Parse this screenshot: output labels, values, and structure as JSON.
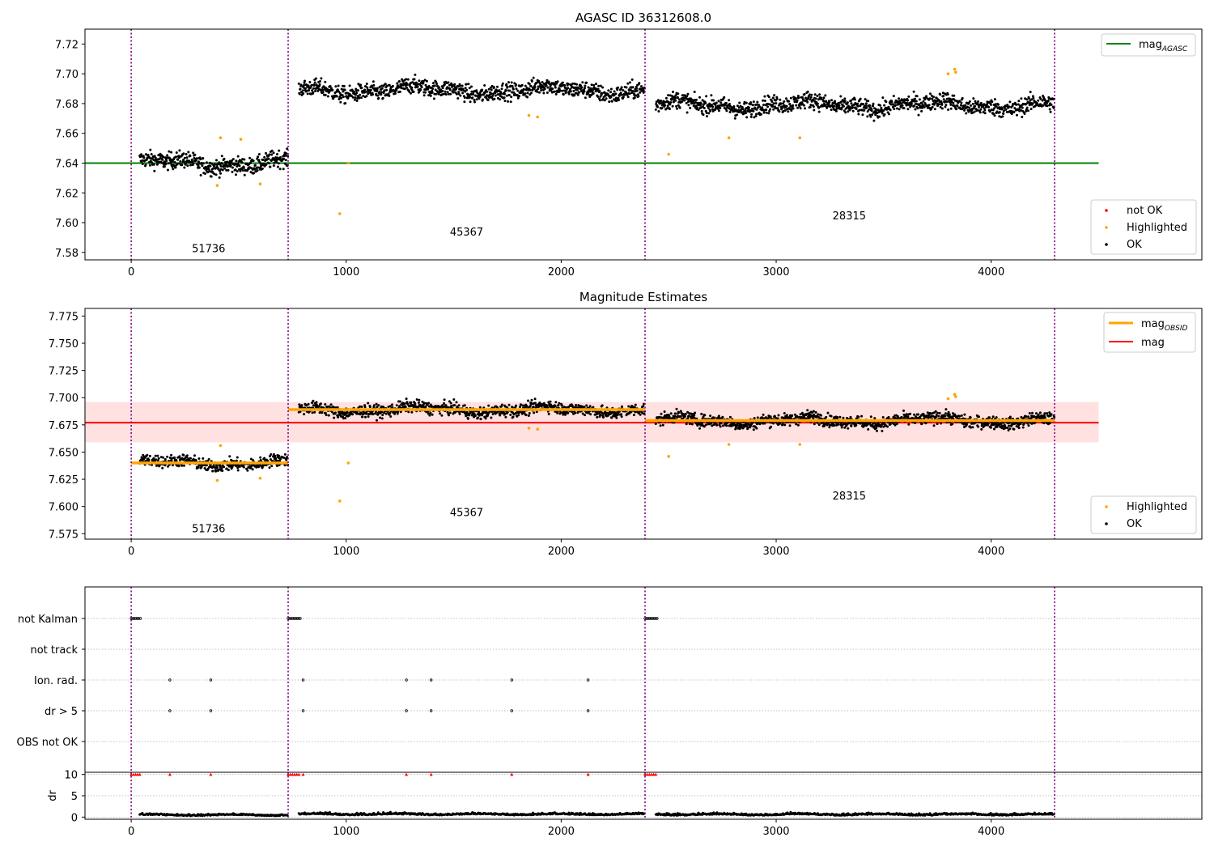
{
  "chart_data": [
    {
      "type": "scatter",
      "title": "AGASC ID 36312608.0",
      "xlabel": "",
      "ylabel": "",
      "xlim": [
        -215,
        4980
      ],
      "ylim": [
        7.575,
        7.73
      ],
      "xticks": [
        0,
        1000,
        2000,
        3000,
        4000
      ],
      "yticks": [
        7.58,
        7.6,
        7.62,
        7.64,
        7.66,
        7.68,
        7.7,
        7.72
      ],
      "ytick_labels": [
        "7.58",
        "7.60",
        "7.62",
        "7.64",
        "7.66",
        "7.68",
        "7.70",
        "7.72"
      ],
      "grid": false,
      "obs_boundaries": [
        0,
        730,
        2390,
        4295
      ],
      "obs_labels": [
        {
          "text": "51736",
          "x": 360,
          "y": 7.583
        },
        {
          "text": "45367",
          "x": 1560,
          "y": 7.594
        },
        {
          "text": "28315",
          "x": 3340,
          "y": 7.605
        }
      ],
      "hlines": [
        {
          "name": "mag_AGASC",
          "y": 7.64,
          "x_from": -215,
          "x_to": 4500,
          "color": "#008000"
        }
      ],
      "segments": [
        {
          "x_from": 40,
          "x_to": 730,
          "base": 7.64,
          "noise": 0.0055
        },
        {
          "x_from": 780,
          "x_to": 2390,
          "base": 7.689,
          "noise": 0.0055
        },
        {
          "x_from": 2440,
          "x_to": 4295,
          "base": 7.679,
          "noise": 0.0055
        }
      ],
      "highlighted_points": [
        [
          400,
          7.625
        ],
        [
          415,
          7.657
        ],
        [
          510,
          7.656
        ],
        [
          600,
          7.626
        ],
        [
          970,
          7.606
        ],
        [
          1010,
          7.64
        ],
        [
          1850,
          7.672
        ],
        [
          1890,
          7.671
        ],
        [
          2500,
          7.646
        ],
        [
          2780,
          7.657
        ],
        [
          3110,
          7.657
        ],
        [
          3800,
          7.7
        ],
        [
          3830,
          7.703
        ],
        [
          3835,
          7.701
        ]
      ],
      "legend": {
        "placement": "top-right",
        "entries": [
          {
            "label": "mag",
            "sub": "AGASC",
            "color": "#008000"
          }
        ]
      },
      "legend2": {
        "placement": "lower-right",
        "entries": [
          {
            "label": "not OK",
            "color": "#ff0000"
          },
          {
            "label": "Highlighted",
            "color": "#ffa500"
          },
          {
            "label": "OK",
            "color": "#000000"
          }
        ]
      }
    },
    {
      "type": "scatter",
      "title": "Magnitude Estimates",
      "xlabel": "",
      "ylabel": "",
      "xlim": [
        -215,
        4980
      ],
      "ylim": [
        7.57,
        7.782
      ],
      "xticks": [
        0,
        1000,
        2000,
        3000,
        4000
      ],
      "yticks": [
        7.575,
        7.6,
        7.625,
        7.65,
        7.675,
        7.7,
        7.725,
        7.75,
        7.775
      ],
      "ytick_labels": [
        "7.575",
        "7.600",
        "7.625",
        "7.650",
        "7.675",
        "7.700",
        "7.725",
        "7.750",
        "7.775"
      ],
      "grid": false,
      "obs_boundaries": [
        0,
        730,
        2390,
        4295
      ],
      "obs_labels": [
        {
          "text": "51736",
          "x": 360,
          "y": 7.58
        },
        {
          "text": "45367",
          "x": 1560,
          "y": 7.595
        },
        {
          "text": "28315",
          "x": 3340,
          "y": 7.61
        }
      ],
      "band": {
        "y_from": 7.659,
        "y_to": 7.696,
        "x_from": -215,
        "x_to": 4500,
        "color": "#ffc8c8"
      },
      "hlines": [
        {
          "name": "mag",
          "y": 7.677,
          "x_from": -215,
          "x_to": 4500,
          "color": "#ff0000"
        }
      ],
      "obsid_means": [
        {
          "x_from": 0,
          "x_to": 730,
          "y": 7.64
        },
        {
          "x_from": 730,
          "x_to": 2390,
          "y": 7.689
        },
        {
          "x_from": 2390,
          "x_to": 4295,
          "y": 7.679
        }
      ],
      "segments": [
        {
          "x_from": 40,
          "x_to": 730,
          "base": 7.64,
          "noise": 0.0055
        },
        {
          "x_from": 780,
          "x_to": 2390,
          "base": 7.689,
          "noise": 0.0055
        },
        {
          "x_from": 2440,
          "x_to": 4295,
          "base": 7.679,
          "noise": 0.0055
        }
      ],
      "highlighted_points": [
        [
          400,
          7.624
        ],
        [
          415,
          7.656
        ],
        [
          600,
          7.626
        ],
        [
          970,
          7.605
        ],
        [
          1010,
          7.64
        ],
        [
          1850,
          7.672
        ],
        [
          1890,
          7.671
        ],
        [
          2500,
          7.646
        ],
        [
          2780,
          7.657
        ],
        [
          3110,
          7.657
        ],
        [
          3800,
          7.699
        ],
        [
          3830,
          7.703
        ],
        [
          3835,
          7.701
        ]
      ],
      "legend": {
        "placement": "top-right",
        "entries": [
          {
            "label": "mag",
            "sub": "OBSID",
            "color": "#ffa500"
          },
          {
            "label": "mag",
            "sub": "",
            "color": "#ff0000"
          }
        ]
      },
      "legend2": {
        "placement": "lower-right",
        "entries": [
          {
            "label": "Highlighted",
            "color": "#ffa500"
          },
          {
            "label": "OK",
            "color": "#000000"
          }
        ]
      }
    },
    {
      "type": "scatter",
      "title": "",
      "xlim": [
        -215,
        4980
      ],
      "xticks": [
        0,
        1000,
        2000,
        3000,
        4000
      ],
      "flag_rows": [
        "not Kalman",
        "not track",
        "Ion. rad.",
        "dr > 5",
        "OBS not OK"
      ],
      "obs_boundaries": [
        0,
        730,
        2390,
        4295
      ],
      "flags": {
        "not Kalman": [
          0,
          7,
          14,
          21,
          28,
          35,
          42,
          730,
          737,
          744,
          751,
          758,
          765,
          772,
          779,
          786,
          2390,
          2397,
          2404,
          2411,
          2418,
          2425,
          2432,
          2439,
          2446
        ],
        "Ion. rad.": [
          180,
          370,
          800,
          1280,
          1395,
          1770,
          2125
        ],
        "dr > 5": [
          180,
          370,
          800,
          1280,
          1395,
          1770,
          2125
        ]
      },
      "dr": {
        "ylabel": "dr",
        "ylim": [
          -0.5,
          10.5
        ],
        "yticks": [
          0,
          5,
          10
        ],
        "ytick_labels": [
          "0",
          "5",
          "10"
        ],
        "clipped_points": [
          0,
          10,
          20,
          30,
          40,
          180,
          370,
          730,
          740,
          750,
          760,
          770,
          780,
          800,
          1280,
          1395,
          1770,
          2125,
          2390,
          2400,
          2410,
          2420,
          2430,
          2440
        ],
        "segments": [
          {
            "x_from": 40,
            "x_to": 730,
            "base": 0.4,
            "noise": 0.3
          },
          {
            "x_from": 780,
            "x_to": 2390,
            "base": 0.55,
            "noise": 0.35
          },
          {
            "x_from": 2440,
            "x_to": 4295,
            "base": 0.5,
            "noise": 0.35
          }
        ]
      }
    }
  ]
}
